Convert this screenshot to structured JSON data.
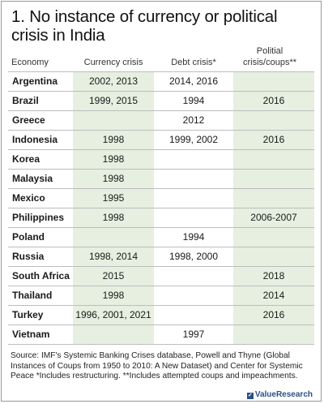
{
  "title": "1. No instance of currency or political crisis in India",
  "columns": {
    "economy": "Economy",
    "currency": "Currency crisis",
    "debt": "Debt crisis*",
    "political": "Politial crisis/coups**"
  },
  "rows": [
    {
      "country": "Argentina",
      "currency": "2002, 2013",
      "debt": "2014, 2016",
      "political": ""
    },
    {
      "country": "Brazil",
      "currency": "1999, 2015",
      "debt": "1994",
      "political": "2016"
    },
    {
      "country": "Greece",
      "currency": "",
      "debt": "2012",
      "political": ""
    },
    {
      "country": "Indonesia",
      "currency": "1998",
      "debt": "1999, 2002",
      "political": "2016"
    },
    {
      "country": "Korea",
      "currency": "1998",
      "debt": "",
      "political": ""
    },
    {
      "country": "Malaysia",
      "currency": "1998",
      "debt": "",
      "political": ""
    },
    {
      "country": "Mexico",
      "currency": "1995",
      "debt": "",
      "political": ""
    },
    {
      "country": "Philippines",
      "currency": "1998",
      "debt": "",
      "political": "2006-2007"
    },
    {
      "country": "Poland",
      "currency": "",
      "debt": "1994",
      "political": ""
    },
    {
      "country": "Russia",
      "currency": "1998, 2014",
      "debt": "1998, 2000",
      "political": ""
    },
    {
      "country": "South Africa",
      "currency": "2015",
      "debt": "",
      "political": "2018"
    },
    {
      "country": "Thailand",
      "currency": "1998",
      "debt": "",
      "political": "2014"
    },
    {
      "country": "Turkey",
      "currency": "1996, 2001, 2021",
      "debt": "",
      "political": "2016"
    },
    {
      "country": "Vietnam",
      "currency": "",
      "debt": "1997",
      "political": ""
    }
  ],
  "footer": "Source: IMF's Systemic Banking Crises database, Powell and Thyne (Global Instances of Coups from 1950 to 2010: A New Dataset) and Center for Systemic Peace *Includes restructuring. **Includes attempted coups and impeachments.",
  "brand": "ValueResearch",
  "colors": {
    "band": "#e6efe0",
    "brand": "#2b4f86"
  }
}
